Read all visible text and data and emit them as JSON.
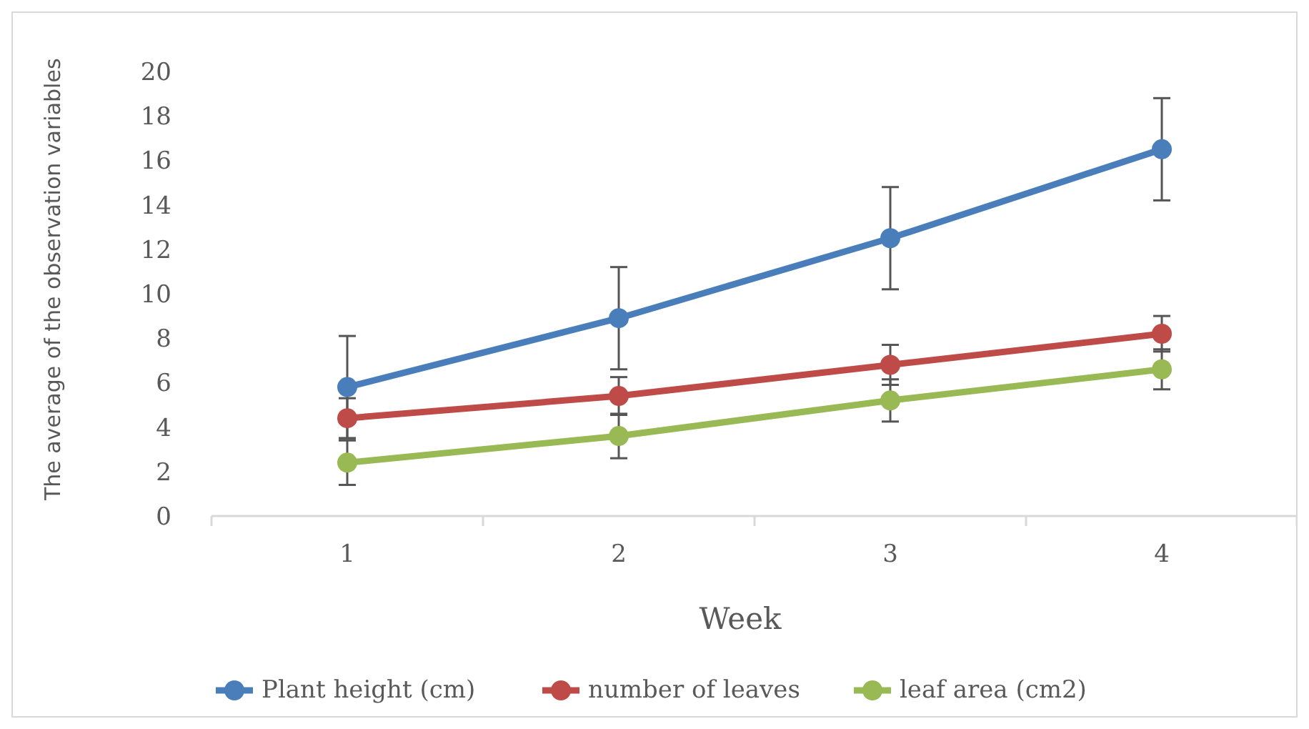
{
  "chart_data": {
    "type": "line",
    "xlabel": "Week",
    "ylabel": "The average of the observation variables",
    "categories": [
      "1",
      "2",
      "3",
      "4"
    ],
    "ylim": [
      0,
      20
    ],
    "yticks": [
      0,
      2,
      4,
      6,
      8,
      10,
      12,
      14,
      16,
      18,
      20
    ],
    "grid": false,
    "legend": "bottom",
    "marker": "circle",
    "line_style": "solid",
    "series": [
      {
        "name": "Plant height (cm)",
        "color": "#4a7ebb",
        "values": [
          5.8,
          8.9,
          12.5,
          16.5
        ],
        "errors": [
          2.3,
          2.3,
          2.3,
          2.3
        ]
      },
      {
        "name": "number of leaves",
        "color": "#be4b48",
        "values": [
          4.4,
          5.4,
          6.8,
          8.2
        ],
        "errors": [
          0.9,
          0.85,
          0.9,
          0.8
        ]
      },
      {
        "name": "leaf area (cm2)",
        "color": "#98b954",
        "values": [
          2.4,
          3.6,
          5.2,
          6.6
        ],
        "errors": [
          1,
          1,
          0.95,
          0.9
        ]
      }
    ]
  }
}
